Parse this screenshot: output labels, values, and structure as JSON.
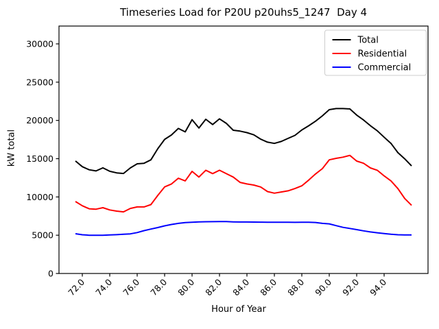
{
  "figure": {
    "title": "Timeseries Load for P20U p20uhs5_1247  Day 4",
    "xlabel": "Hour of Year",
    "ylabel": "kW total",
    "background": "#ffffff"
  },
  "chart_data": {
    "type": "line",
    "title": "Timeseries Load for P20U p20uhs5_1247  Day 4",
    "xlabel": "Hour of Year",
    "ylabel": "kW total",
    "xlim": [
      70.3,
      97.2
    ],
    "ylim": [
      0,
      32330
    ],
    "grid": false,
    "legend_position": "upper right",
    "xticks": [
      72,
      74,
      76,
      78,
      80,
      82,
      84,
      86,
      88,
      90,
      92,
      94
    ],
    "xtick_labels": [
      "72.0",
      "74.0",
      "76.0",
      "78.0",
      "80.0",
      "82.0",
      "84.0",
      "86.0",
      "88.0",
      "90.0",
      "92.0",
      "94.0"
    ],
    "xtick_rotation": 47,
    "yticks": [
      0,
      5000,
      10000,
      15000,
      20000,
      25000,
      30000
    ],
    "ytick_labels": [
      "0",
      "5000",
      "10000",
      "15000",
      "20000",
      "25000",
      "30000"
    ],
    "x": [
      71.5,
      72.0,
      72.5,
      73.0,
      73.5,
      74.0,
      74.5,
      75.0,
      75.5,
      76.0,
      76.5,
      77.0,
      77.5,
      78.0,
      78.5,
      79.0,
      79.5,
      80.0,
      80.5,
      81.0,
      81.5,
      82.0,
      82.5,
      83.0,
      83.5,
      84.0,
      84.5,
      85.0,
      85.5,
      86.0,
      86.5,
      87.0,
      87.5,
      88.0,
      88.5,
      89.0,
      89.5,
      90.0,
      90.5,
      91.0,
      91.5,
      92.0,
      92.5,
      93.0,
      93.5,
      94.0,
      94.5,
      95.0,
      95.5,
      96.0
    ],
    "series": [
      {
        "name": "Total",
        "color": "#000000",
        "values": [
          14700,
          13950,
          13550,
          13400,
          13800,
          13350,
          13150,
          13070,
          13790,
          14330,
          14400,
          14850,
          16300,
          17520,
          18100,
          18950,
          18500,
          20100,
          19000,
          20150,
          19460,
          20200,
          19610,
          18720,
          18600,
          18400,
          18120,
          17550,
          17160,
          17000,
          17250,
          17650,
          18050,
          18750,
          19300,
          19900,
          20600,
          21400,
          21550,
          21550,
          21500,
          20700,
          20050,
          19310,
          18650,
          17800,
          17000,
          15800,
          14980,
          14050
        ]
      },
      {
        "name": "Residential",
        "color": "#ff0000",
        "values": [
          9400,
          8850,
          8450,
          8400,
          8600,
          8300,
          8150,
          8050,
          8500,
          8700,
          8700,
          9000,
          10200,
          11310,
          11700,
          12450,
          12100,
          13340,
          12600,
          13490,
          13050,
          13490,
          13040,
          12600,
          11900,
          11700,
          11550,
          11300,
          10700,
          10500,
          10650,
          10800,
          11100,
          11450,
          12200,
          13000,
          13700,
          14850,
          15050,
          15200,
          15430,
          14690,
          14400,
          13790,
          13490,
          12750,
          12100,
          11100,
          9800,
          8900
        ]
      },
      {
        "name": "Commercial",
        "color": "#0000ff",
        "values": [
          5190,
          5060,
          5000,
          4990,
          5000,
          5030,
          5070,
          5120,
          5180,
          5350,
          5600,
          5800,
          6000,
          6220,
          6400,
          6550,
          6650,
          6700,
          6740,
          6760,
          6770,
          6780,
          6780,
          6740,
          6730,
          6730,
          6720,
          6710,
          6700,
          6700,
          6700,
          6690,
          6680,
          6700,
          6700,
          6660,
          6550,
          6480,
          6250,
          6030,
          5880,
          5730,
          5570,
          5430,
          5320,
          5220,
          5120,
          5060,
          5040,
          5040
        ]
      }
    ]
  }
}
